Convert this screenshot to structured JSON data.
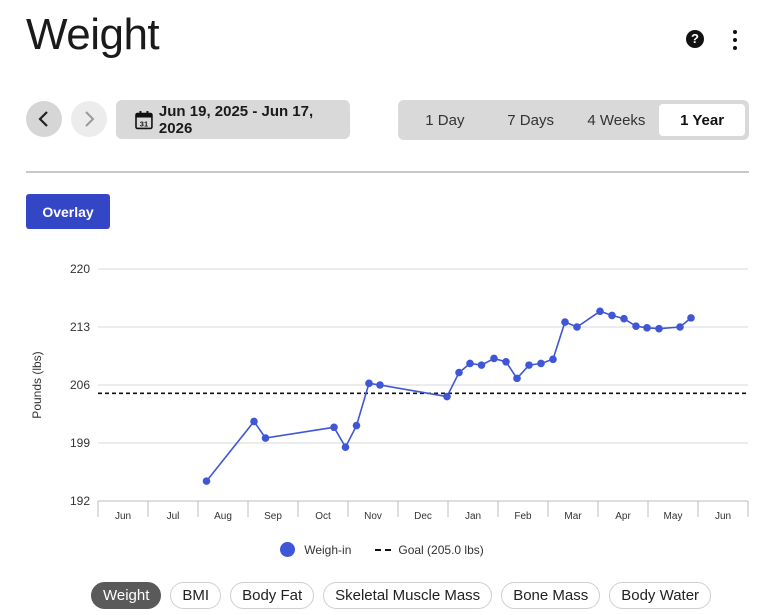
{
  "page": {
    "title": "Weight"
  },
  "header": {
    "help_icon_glyph": "?"
  },
  "date_nav": {
    "range_label": "Jun 19, 2025 - Jun 17, 2026"
  },
  "range_tabs": [
    {
      "label": "1 Day",
      "active": false
    },
    {
      "label": "7 Days",
      "active": false
    },
    {
      "label": "4 Weeks",
      "active": false
    },
    {
      "label": "1 Year",
      "active": true
    }
  ],
  "overlay_button": {
    "label": "Overlay"
  },
  "legend": {
    "weigh_in": "Weigh-in",
    "goal": "Goal (205.0 lbs)"
  },
  "metric_tabs": [
    {
      "label": "Weight",
      "active": true
    },
    {
      "label": "BMI",
      "active": false
    },
    {
      "label": "Body Fat",
      "active": false
    },
    {
      "label": "Skeletal Muscle Mass",
      "active": false
    },
    {
      "label": "Bone Mass",
      "active": false
    },
    {
      "label": "Body Water",
      "active": false
    }
  ],
  "colors": {
    "accent": "#3346c6",
    "series": "#3f57d6",
    "grid": "#d8d8d8"
  },
  "chart_data": {
    "type": "line",
    "ylabel": "Pounds (lbs)",
    "ylim": [
      192,
      220
    ],
    "yticks": [
      192,
      199,
      206,
      213,
      220
    ],
    "months": [
      "Jun",
      "Jul",
      "Aug",
      "Sep",
      "Oct",
      "Nov",
      "Dec",
      "Jan",
      "Feb",
      "Mar",
      "Apr",
      "May",
      "Jun"
    ],
    "goal": 205.0,
    "grid": true,
    "series": [
      {
        "name": "Weigh-in",
        "points": [
          {
            "x": 2.17,
            "y": 194.4
          },
          {
            "x": 3.12,
            "y": 201.6
          },
          {
            "x": 3.35,
            "y": 199.6
          },
          {
            "x": 4.72,
            "y": 200.9
          },
          {
            "x": 4.95,
            "y": 198.5
          },
          {
            "x": 5.17,
            "y": 201.1
          },
          {
            "x": 5.42,
            "y": 206.2
          },
          {
            "x": 5.64,
            "y": 206.0
          },
          {
            "x": 6.98,
            "y": 204.6
          },
          {
            "x": 7.22,
            "y": 207.5
          },
          {
            "x": 7.44,
            "y": 208.6
          },
          {
            "x": 7.67,
            "y": 208.4
          },
          {
            "x": 7.92,
            "y": 209.2
          },
          {
            "x": 8.16,
            "y": 208.8
          },
          {
            "x": 8.38,
            "y": 206.8
          },
          {
            "x": 8.62,
            "y": 208.4
          },
          {
            "x": 8.86,
            "y": 208.6
          },
          {
            "x": 9.1,
            "y": 209.1
          },
          {
            "x": 9.34,
            "y": 213.6
          },
          {
            "x": 9.58,
            "y": 213.0
          },
          {
            "x": 10.04,
            "y": 214.9
          },
          {
            "x": 10.28,
            "y": 214.4
          },
          {
            "x": 10.52,
            "y": 214.0
          },
          {
            "x": 10.76,
            "y": 213.1
          },
          {
            "x": 10.98,
            "y": 212.9
          },
          {
            "x": 11.22,
            "y": 212.8
          },
          {
            "x": 11.64,
            "y": 213.0
          },
          {
            "x": 11.86,
            "y": 214.1
          }
        ]
      }
    ]
  }
}
